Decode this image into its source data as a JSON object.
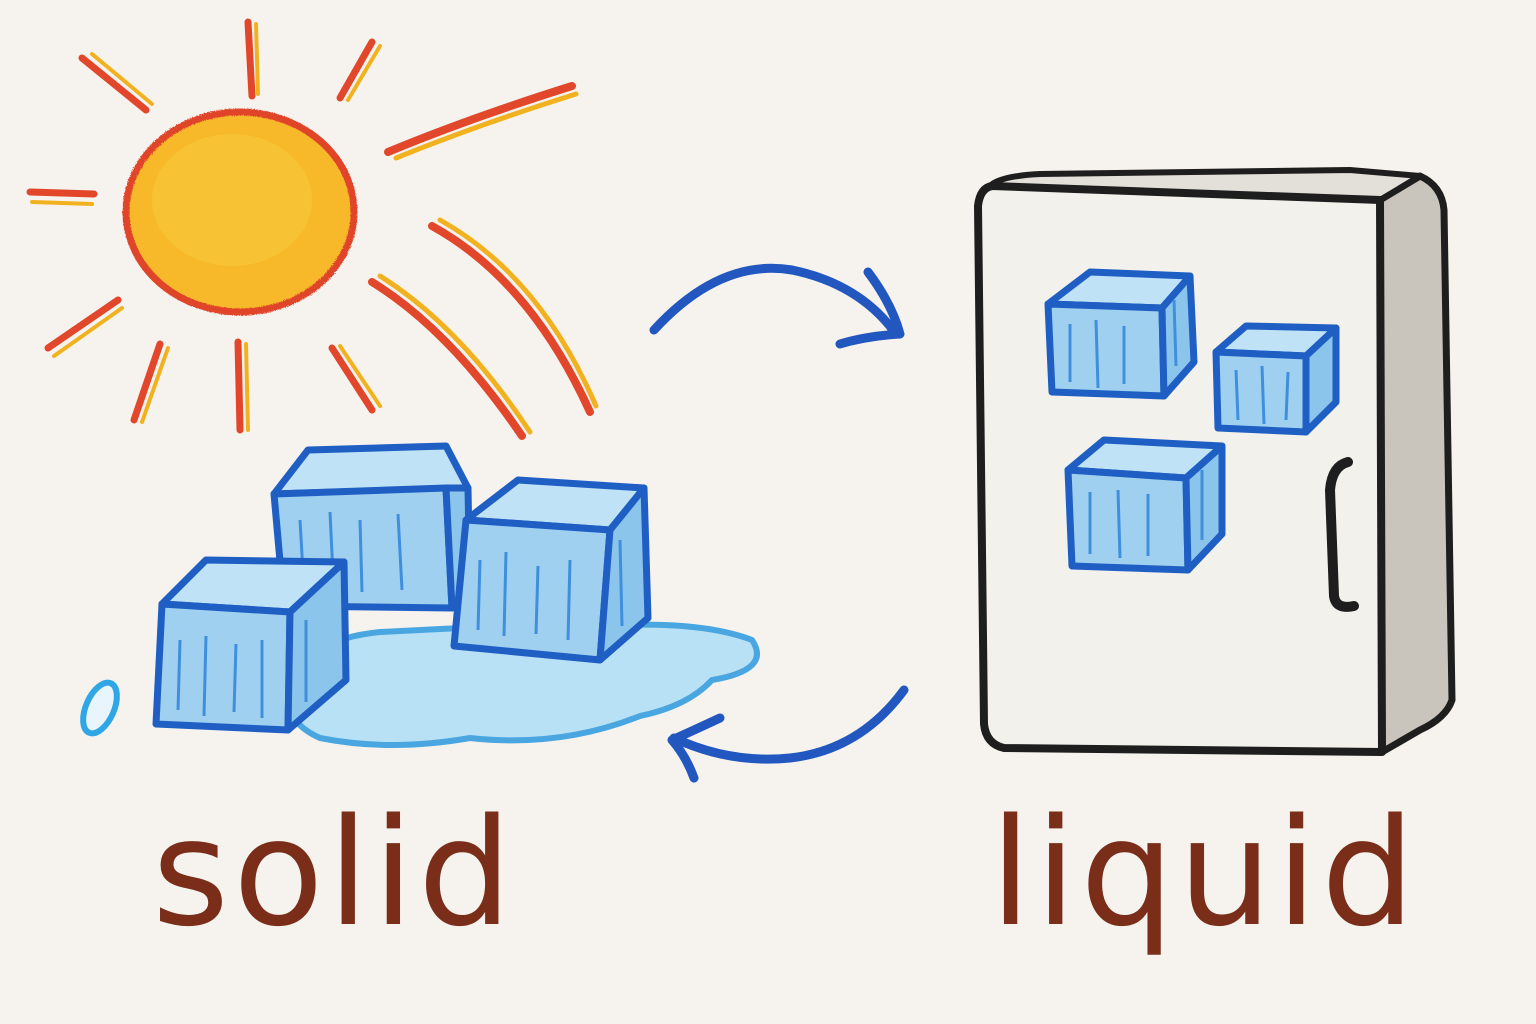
{
  "labels": {
    "left": "solid",
    "right": "liquid"
  },
  "colors": {
    "paper": "#f6f3ee",
    "sun_fill": "#f7b92a",
    "sun_outline": "#e0452a",
    "ray_red": "#e2472b",
    "ray_yellow": "#f2b21f",
    "ice_fill": "#9fd0f0",
    "ice_outline": "#1f5fc4",
    "ice_hatch": "#3f8fdc",
    "puddle_fill": "#b9e1f5",
    "puddle_outline": "#4aa6e0",
    "drop_outline": "#2fa6e6",
    "arrow": "#2357c0",
    "fridge_body": "#f3f1ec",
    "fridge_side": "#c9c5bd",
    "fridge_outline": "#1e1e1e",
    "label_text": "#7a2e1a"
  },
  "icons": {
    "sun": "sun-icon",
    "melting_ice": "melting-ice-cubes",
    "fridge": "refrigerator-icon",
    "frozen_ice": "frozen-ice-cubes",
    "arrow_top": "curved-arrow-right",
    "arrow_bottom": "curved-arrow-left",
    "drop": "water-drop-icon"
  }
}
